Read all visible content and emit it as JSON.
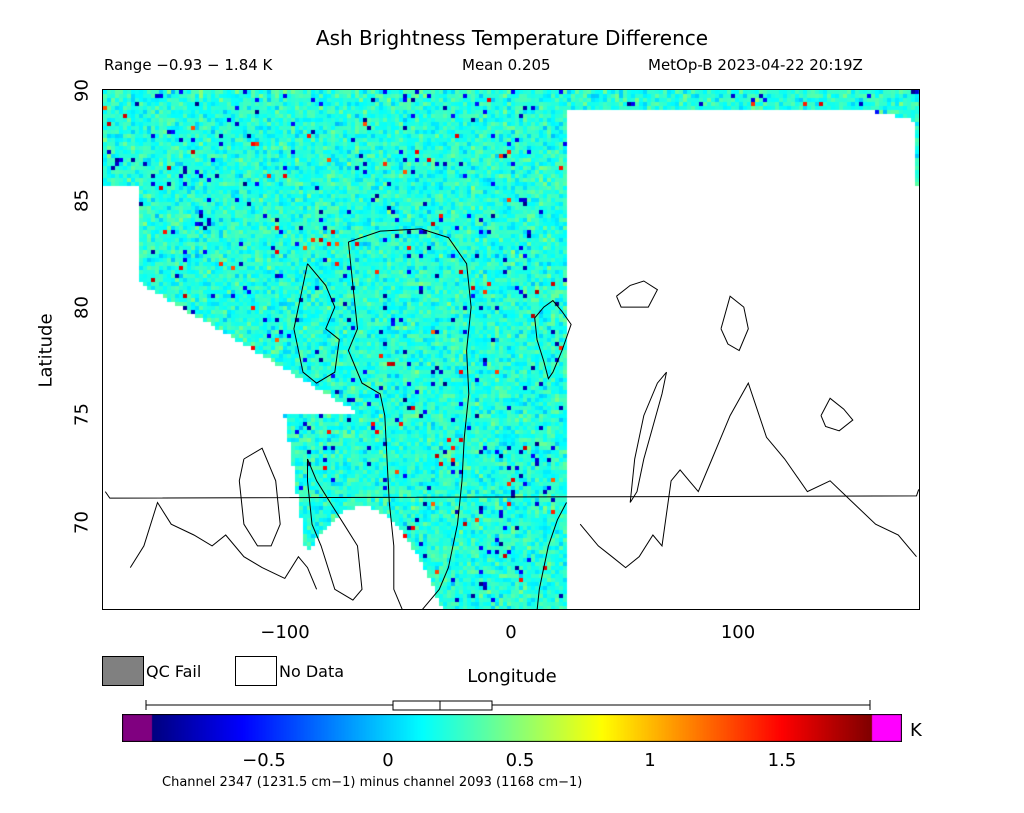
{
  "title": "Ash Brightness Temperature Difference",
  "stats": {
    "range": "Range −0.93 − 1.84 K",
    "mean": "Mean 0.205",
    "satellite_time": "MetOp-B 2023-04-22 20:19Z"
  },
  "axes": {
    "x_title": "Longitude",
    "y_title": "Latitude",
    "x_ticks": [
      "−100",
      "0",
      "100"
    ],
    "y_ticks": [
      "90",
      "85",
      "80",
      "75",
      "70"
    ]
  },
  "legend": {
    "qc_fail": {
      "label": "QC Fail",
      "color": "#808080"
    },
    "no_data": {
      "label": "No Data",
      "color": "#ffffff"
    }
  },
  "colorbar": {
    "ticks": [
      "−0.5",
      "0",
      "0.5",
      "1",
      "1.5"
    ],
    "unit": "K",
    "under_color": "#800080",
    "over_color": "#ff00ff",
    "box_summary": {
      "min": -0.93,
      "q1": 0.02,
      "median": 0.205,
      "q3": 0.41,
      "max": 1.84
    }
  },
  "caption": "Channel 2347 (1231.5 cm−1) minus channel 2093 (1168 cm−1)",
  "chart_data": {
    "type": "heatmap",
    "title": "Ash Brightness Temperature Difference",
    "xlabel": "Longitude",
    "ylabel": "Latitude",
    "xlim": [
      -180,
      180
    ],
    "ylim": [
      66,
      90
    ],
    "x_ticks": [
      -100,
      0,
      100
    ],
    "y_ticks": [
      70,
      75,
      80,
      85,
      90
    ],
    "colorbar_range": [
      -0.93,
      1.84
    ],
    "colorbar_ticks": [
      -0.5,
      0,
      0.5,
      1,
      1.5
    ],
    "mean": 0.205,
    "units": "K",
    "colormap": "jet"
  }
}
